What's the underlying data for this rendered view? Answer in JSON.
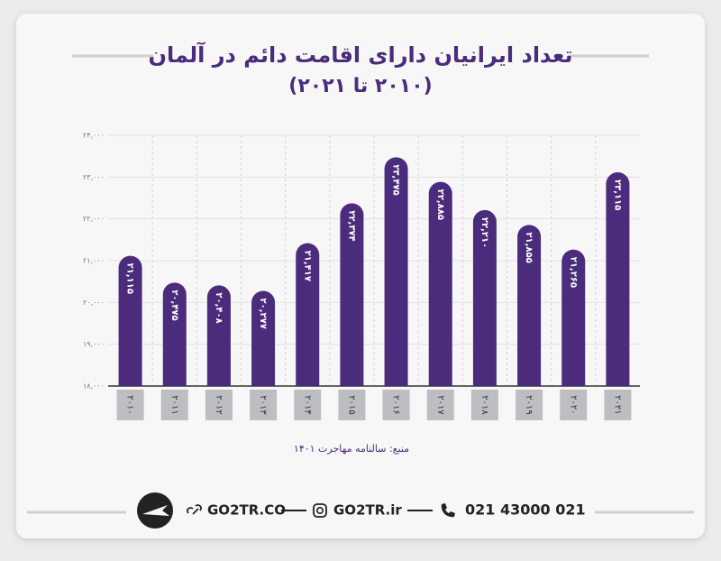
{
  "chart_data": {
    "type": "bar",
    "title": "تعداد ایرانیان دارای اقامت دائم در آلمان",
    "subtitle": "(۲۰۱۰ تا ۲۰۲۱)",
    "categories": [
      "۲۰۱۰",
      "۲۰۱۱",
      "۲۰۱۲",
      "۲۰۱۳",
      "۲۰۱۴",
      "۲۰۱۵",
      "۲۰۱۶",
      "۲۰۱۷",
      "۲۰۱۸",
      "۲۰۱۹",
      "۲۰۲۰",
      "۲۰۲۱"
    ],
    "values": [
      21115,
      20475,
      20408,
      20277,
      21417,
      22374,
      23475,
      22885,
      22210,
      21855,
      21265,
      23115
    ],
    "value_labels": [
      "۲۱,۱۱۵",
      "۲۰,۴۷۵",
      "۲۰,۴۰۸",
      "۲۰,۲۷۷",
      "۲۱,۴۱۷",
      "۲۲,۳۷۴",
      "۲۳,۴۷۵",
      "۲۲,۸۸۵",
      "۲۲,۲۱۰",
      "۲۱,۸۵۵",
      "۲۱,۲۶۵",
      "۲۳,۱۱۵"
    ],
    "color": "#4b2c7c",
    "ylim": [
      18000,
      24000
    ],
    "yticks": [
      {
        "value": 18000,
        "label": "۱۸,۰۰۰"
      },
      {
        "value": 19000,
        "label": "۱۹,۰۰۰"
      },
      {
        "value": 20000,
        "label": "۲۰,۰۰۰"
      },
      {
        "value": 21000,
        "label": "۲۱,۰۰۰"
      },
      {
        "value": 22000,
        "label": "۲۲,۰۰۰"
      },
      {
        "value": 23000,
        "label": "۲۳,۰۰۰"
      },
      {
        "value": 24000,
        "label": "۲۴,۰۰۰"
      }
    ],
    "grid": true,
    "source": "منبع: سالنامه مهاجرت ۱۴۰۱"
  },
  "footer": {
    "website": "GO2TR.CO",
    "instagram": "GO2TR.ir",
    "phone": "021 43000 021"
  }
}
